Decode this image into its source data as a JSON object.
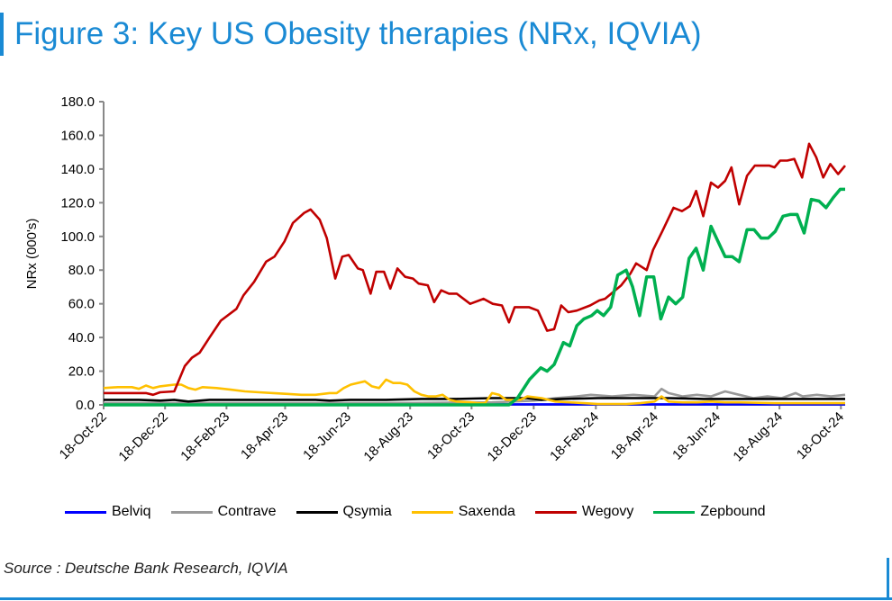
{
  "title": "Figure 3: Key US Obesity therapies (NRx, IQVIA)",
  "source": "Source : Deutsche Bank Research, IQVIA",
  "chart_data": {
    "type": "line",
    "title": "Figure 3: Key US Obesity therapies (NRx, IQVIA)",
    "ylabel": "NRx (000's)",
    "xlabel": "",
    "x_unit": "weeks since 18-Oct-22",
    "xlim": [
      0,
      105
    ],
    "ylim": [
      0,
      180
    ],
    "yticks": [
      "0.0",
      "20.0",
      "40.0",
      "60.0",
      "80.0",
      "100.0",
      "120.0",
      "140.0",
      "160.0",
      "180.0"
    ],
    "xticks": [
      {
        "week": 0,
        "label": "18-Oct-22"
      },
      {
        "week": 8.7,
        "label": "18-Dec-22"
      },
      {
        "week": 17.4,
        "label": "18-Feb-23"
      },
      {
        "week": 25.7,
        "label": "18-Apr-23"
      },
      {
        "week": 34.6,
        "label": "18-Jun-23"
      },
      {
        "week": 43.4,
        "label": "18-Aug-23"
      },
      {
        "week": 52.1,
        "label": "18-Oct-23"
      },
      {
        "week": 60.9,
        "label": "18-Dec-23"
      },
      {
        "week": 69.7,
        "label": "18-Feb-24"
      },
      {
        "week": 78.1,
        "label": "18-Apr-24"
      },
      {
        "week": 86.9,
        "label": "18-Jun-24"
      },
      {
        "week": 95.7,
        "label": "18-Aug-24"
      },
      {
        "week": 104.4,
        "label": "18-Oct-24"
      }
    ],
    "legend_position": "bottom",
    "series": [
      {
        "name": "Belviq",
        "color": "#0000ff",
        "points": [
          [
            0,
            0.3
          ],
          [
            105,
            0.3
          ]
        ]
      },
      {
        "name": "Contrave",
        "color": "#999999",
        "points": [
          [
            0,
            1
          ],
          [
            20,
            1
          ],
          [
            40,
            1
          ],
          [
            55,
            1.5
          ],
          [
            61,
            2.5
          ],
          [
            64,
            4
          ],
          [
            67,
            5
          ],
          [
            69,
            6
          ],
          [
            72,
            5
          ],
          [
            75,
            6
          ],
          [
            78,
            5
          ],
          [
            79,
            9.5
          ],
          [
            80,
            7
          ],
          [
            82,
            5
          ],
          [
            84,
            6
          ],
          [
            86,
            5
          ],
          [
            88,
            8
          ],
          [
            90,
            6
          ],
          [
            92,
            4
          ],
          [
            94,
            5
          ],
          [
            96,
            4
          ],
          [
            98,
            7
          ],
          [
            99,
            5
          ],
          [
            101,
            6
          ],
          [
            103,
            5
          ],
          [
            105,
            6
          ]
        ]
      },
      {
        "name": "Qsymia",
        "color": "#000000",
        "points": [
          [
            0,
            3
          ],
          [
            5,
            3
          ],
          [
            8,
            2.5
          ],
          [
            10,
            3
          ],
          [
            12,
            2
          ],
          [
            15,
            3
          ],
          [
            20,
            3
          ],
          [
            25,
            3
          ],
          [
            30,
            3
          ],
          [
            32,
            2.5
          ],
          [
            35,
            3
          ],
          [
            40,
            3
          ],
          [
            45,
            3.5
          ],
          [
            50,
            3.5
          ],
          [
            55,
            4
          ],
          [
            60,
            4
          ],
          [
            62,
            3
          ],
          [
            65,
            3.5
          ],
          [
            70,
            4
          ],
          [
            75,
            4
          ],
          [
            80,
            4
          ],
          [
            85,
            3.5
          ],
          [
            90,
            3.5
          ],
          [
            95,
            3.5
          ],
          [
            100,
            3.5
          ],
          [
            105,
            3.5
          ]
        ]
      },
      {
        "name": "Saxenda",
        "color": "#ffc000",
        "points": [
          [
            0,
            10
          ],
          [
            2,
            10.5
          ],
          [
            4,
            10.5
          ],
          [
            5,
            9.5
          ],
          [
            6,
            11.5
          ],
          [
            7,
            10
          ],
          [
            8,
            11
          ],
          [
            10,
            12
          ],
          [
            11,
            12
          ],
          [
            12,
            10
          ],
          [
            13,
            9
          ],
          [
            14,
            10.5
          ],
          [
            16,
            10
          ],
          [
            18,
            9
          ],
          [
            20,
            8
          ],
          [
            22,
            7.5
          ],
          [
            24,
            7
          ],
          [
            26,
            6.5
          ],
          [
            28,
            6
          ],
          [
            30,
            6
          ],
          [
            32,
            7
          ],
          [
            33,
            7
          ],
          [
            34,
            10
          ],
          [
            35,
            12
          ],
          [
            37,
            14
          ],
          [
            38,
            11
          ],
          [
            39,
            10
          ],
          [
            40,
            15
          ],
          [
            41,
            13
          ],
          [
            42,
            13
          ],
          [
            43,
            12
          ],
          [
            44,
            8
          ],
          [
            45,
            6
          ],
          [
            46,
            5
          ],
          [
            47,
            5
          ],
          [
            48,
            6
          ],
          [
            49,
            3
          ],
          [
            50,
            2
          ],
          [
            52,
            1.5
          ],
          [
            53,
            1
          ],
          [
            54,
            1
          ],
          [
            55,
            7
          ],
          [
            56,
            6
          ],
          [
            57,
            3
          ],
          [
            59,
            3
          ],
          [
            60,
            5
          ],
          [
            62,
            4
          ],
          [
            64,
            2
          ],
          [
            66,
            1.5
          ],
          [
            68,
            1
          ],
          [
            70,
            0.5
          ],
          [
            72,
            0.5
          ],
          [
            74,
            0.5
          ],
          [
            76,
            1
          ],
          [
            78,
            2
          ],
          [
            79,
            5
          ],
          [
            80,
            2
          ],
          [
            82,
            1.5
          ],
          [
            84,
            1.5
          ],
          [
            86,
            2
          ],
          [
            88,
            1.5
          ],
          [
            90,
            1.5
          ],
          [
            95,
            1
          ],
          [
            100,
            1
          ],
          [
            105,
            1
          ]
        ]
      },
      {
        "name": "Wegovy",
        "color": "#c00000",
        "points": [
          [
            0,
            7
          ],
          [
            3,
            7
          ],
          [
            6,
            7
          ],
          [
            7,
            6
          ],
          [
            8,
            7.5
          ],
          [
            10,
            8
          ],
          [
            11.5,
            23
          ],
          [
            12.5,
            28
          ],
          [
            13.6,
            31
          ],
          [
            15,
            40
          ],
          [
            16.6,
            50
          ],
          [
            18.8,
            57
          ],
          [
            19.8,
            65
          ],
          [
            21.3,
            73
          ],
          [
            23,
            85
          ],
          [
            24.2,
            88
          ],
          [
            25.6,
            97
          ],
          [
            26.8,
            108
          ],
          [
            28.4,
            114
          ],
          [
            29.3,
            116
          ],
          [
            30.6,
            110
          ],
          [
            31.6,
            99
          ],
          [
            32.8,
            75
          ],
          [
            33.8,
            88
          ],
          [
            34.7,
            89
          ],
          [
            36,
            81
          ],
          [
            36.7,
            80
          ],
          [
            37.8,
            66
          ],
          [
            38.6,
            79
          ],
          [
            39.7,
            79
          ],
          [
            40.6,
            69
          ],
          [
            41.6,
            81
          ],
          [
            42.7,
            76
          ],
          [
            43.8,
            75
          ],
          [
            44.6,
            72
          ],
          [
            45.9,
            71
          ],
          [
            46.8,
            61
          ],
          [
            47.8,
            68
          ],
          [
            48.9,
            66
          ],
          [
            50,
            66
          ],
          [
            51.9,
            60
          ],
          [
            53.8,
            63
          ],
          [
            55.1,
            60
          ],
          [
            56.4,
            59
          ],
          [
            57.4,
            49
          ],
          [
            58.2,
            58
          ],
          [
            60.2,
            58
          ],
          [
            61.5,
            56
          ],
          [
            62.8,
            44
          ],
          [
            63.8,
            45
          ],
          [
            64.8,
            59
          ],
          [
            65.8,
            55
          ],
          [
            67,
            56
          ],
          [
            68.9,
            59
          ],
          [
            70.2,
            62
          ],
          [
            71,
            63
          ],
          [
            73.3,
            71
          ],
          [
            74.6,
            78
          ],
          [
            75.4,
            84
          ],
          [
            76.9,
            80
          ],
          [
            77.8,
            92
          ],
          [
            79.1,
            103
          ],
          [
            80.7,
            117
          ],
          [
            81.9,
            115
          ],
          [
            83,
            118
          ],
          [
            83.9,
            127
          ],
          [
            84.9,
            112
          ],
          [
            86,
            132
          ],
          [
            87,
            129
          ],
          [
            88,
            133
          ],
          [
            88.9,
            141
          ],
          [
            90,
            119
          ],
          [
            91.1,
            136
          ],
          [
            92.2,
            142
          ],
          [
            93.2,
            142
          ],
          [
            94.3,
            142
          ],
          [
            95,
            141
          ],
          [
            95.8,
            145
          ],
          [
            96.8,
            145
          ],
          [
            97.8,
            146
          ],
          [
            98.9,
            135
          ],
          [
            99.9,
            155
          ],
          [
            100.9,
            147
          ],
          [
            101.9,
            135
          ],
          [
            102.9,
            143
          ],
          [
            104,
            137
          ],
          [
            105,
            142
          ]
        ]
      },
      {
        "name": "Zepbound",
        "color": "#00b050",
        "points": [
          [
            0,
            0
          ],
          [
            57.4,
            0
          ],
          [
            58.6,
            4
          ],
          [
            60.3,
            15
          ],
          [
            61.9,
            22
          ],
          [
            62.8,
            20
          ],
          [
            63.8,
            24
          ],
          [
            65.1,
            37
          ],
          [
            66,
            35
          ],
          [
            67,
            47
          ],
          [
            68,
            51
          ],
          [
            69.1,
            53
          ],
          [
            69.9,
            56
          ],
          [
            70.8,
            53
          ],
          [
            71.8,
            58
          ],
          [
            72.8,
            77
          ],
          [
            74,
            80
          ],
          [
            74.9,
            70
          ],
          [
            75.9,
            53
          ],
          [
            76.9,
            76
          ],
          [
            77.9,
            76
          ],
          [
            78.9,
            51
          ],
          [
            80,
            64
          ],
          [
            81,
            60
          ],
          [
            82,
            64
          ],
          [
            82.9,
            87
          ],
          [
            83.9,
            93
          ],
          [
            84.9,
            80
          ],
          [
            86,
            106
          ],
          [
            87,
            97
          ],
          [
            88,
            88
          ],
          [
            89,
            88
          ],
          [
            90,
            85
          ],
          [
            91.1,
            104
          ],
          [
            92.1,
            104
          ],
          [
            93.1,
            99
          ],
          [
            94.1,
            99
          ],
          [
            95.1,
            103
          ],
          [
            96.2,
            112
          ],
          [
            97.2,
            113
          ],
          [
            98.2,
            113
          ],
          [
            99.2,
            102
          ],
          [
            100.2,
            122
          ],
          [
            101.3,
            121
          ],
          [
            102.3,
            117
          ],
          [
            103.3,
            123
          ],
          [
            104.3,
            128
          ],
          [
            105,
            128
          ]
        ]
      }
    ]
  }
}
